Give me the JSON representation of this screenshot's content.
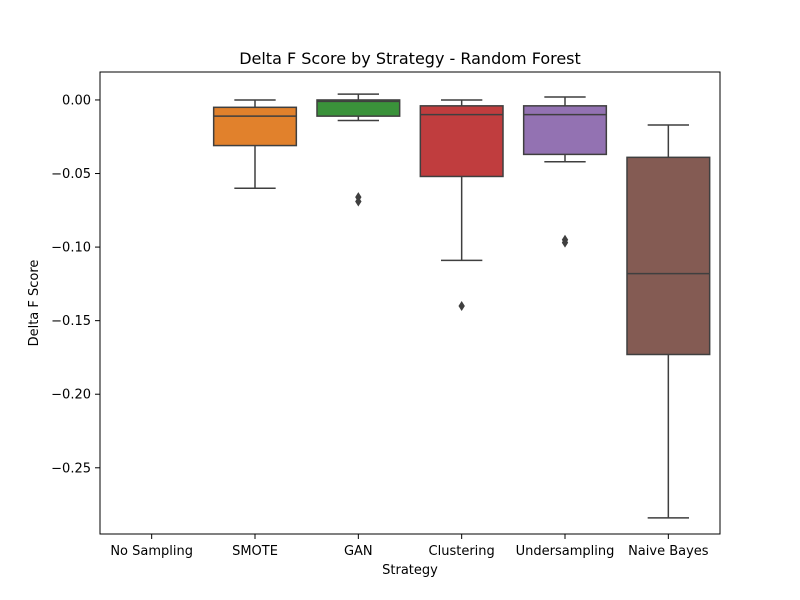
{
  "chart_data": {
    "type": "boxplot",
    "title": "Delta F Score by Strategy - Random Forest",
    "xlabel": "Strategy",
    "ylabel": "Delta F Score",
    "ylim": [
      -0.295,
      0.019
    ],
    "yticks": [
      0.0,
      -0.05,
      -0.1,
      -0.15,
      -0.2,
      -0.25
    ],
    "ytick_labels": [
      "0.00",
      "−0.05",
      "−0.10",
      "−0.15",
      "−0.20",
      "−0.25"
    ],
    "grid": false,
    "categories": [
      "No Sampling",
      "SMOTE",
      "GAN",
      "Clustering",
      "Undersampling",
      "Naive Bayes"
    ],
    "boxes": [
      {
        "category": "No Sampling",
        "color": null,
        "min": null,
        "q1": null,
        "median": null,
        "q3": null,
        "max": null,
        "outliers": []
      },
      {
        "category": "SMOTE",
        "color": "#e1812c",
        "min": -0.06,
        "q1": -0.031,
        "median": -0.011,
        "q3": -0.005,
        "max": 0.0,
        "outliers": []
      },
      {
        "category": "GAN",
        "color": "#3a923a",
        "min": -0.014,
        "q1": -0.011,
        "median": -0.001,
        "q3": 0.0,
        "max": 0.004,
        "outliers": [
          -0.066,
          -0.069
        ]
      },
      {
        "category": "Clustering",
        "color": "#c03d3e",
        "min": -0.109,
        "q1": -0.052,
        "median": -0.01,
        "q3": -0.004,
        "max": 0.0,
        "outliers": [
          -0.14
        ]
      },
      {
        "category": "Undersampling",
        "color": "#9372b2",
        "min": -0.042,
        "q1": -0.037,
        "median": -0.01,
        "q3": -0.004,
        "max": 0.002,
        "outliers": [
          -0.095,
          -0.097
        ]
      },
      {
        "category": "Naive Bayes",
        "color": "#845b53",
        "min": -0.284,
        "q1": -0.173,
        "median": -0.118,
        "q3": -0.039,
        "max": -0.017,
        "outliers": []
      }
    ]
  }
}
